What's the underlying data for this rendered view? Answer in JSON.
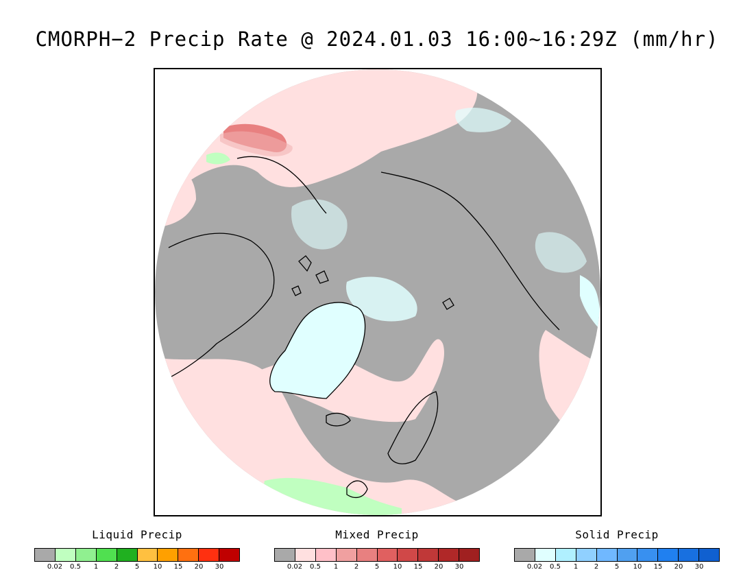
{
  "title": "CMORPH−2 Precip Rate @ 2024.01.03 16:00~16:29Z (mm/hr)",
  "map": {
    "projection": "north-polar-stereographic",
    "colors": {
      "no_precip": "#a9a9a9",
      "mixed_light": "#ffe0e0",
      "mixed_mid": "#f0a0a0",
      "mixed_heavy": "#e07070",
      "solid_light": "#e0ffff",
      "liquid_light": "#c0ffc0",
      "coastline": "#000000"
    }
  },
  "legends": [
    {
      "title": "Liquid Precip",
      "colors": [
        "#a9a9a9",
        "#c0ffc0",
        "#90f090",
        "#50e050",
        "#20b020",
        "#ffc040",
        "#ffa000",
        "#ff7010",
        "#ff3010",
        "#c00000"
      ],
      "ticks": [
        "0.02",
        "0.5",
        "1",
        "2",
        "5",
        "10",
        "15",
        "20",
        "30"
      ]
    },
    {
      "title": "Mixed Precip",
      "colors": [
        "#a9a9a9",
        "#ffe0e0",
        "#ffc0c8",
        "#f0a0a0",
        "#e88080",
        "#e06060",
        "#d04848",
        "#c03838",
        "#b02828",
        "#a02020"
      ],
      "ticks": [
        "0.02",
        "0.5",
        "1",
        "2",
        "5",
        "10",
        "15",
        "20",
        "30"
      ]
    },
    {
      "title": "Solid Precip",
      "colors": [
        "#a9a9a9",
        "#e0ffff",
        "#b0f0ff",
        "#90d0ff",
        "#70b8ff",
        "#50a0f0",
        "#3890f0",
        "#2080f0",
        "#1870e0",
        "#1060d0"
      ],
      "ticks": [
        "0.02",
        "0.5",
        "1",
        "2",
        "5",
        "10",
        "15",
        "20",
        "30"
      ]
    }
  ]
}
